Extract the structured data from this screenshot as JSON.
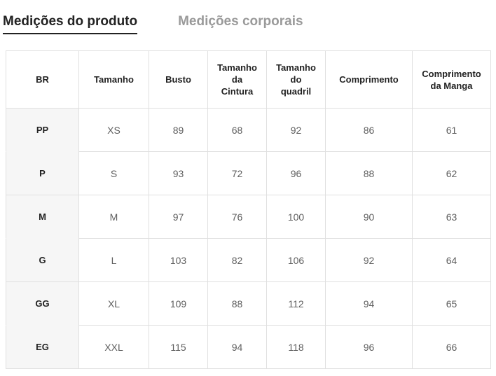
{
  "tabs": [
    {
      "label": "Medições do produto",
      "active": true
    },
    {
      "label": "Medições corporais",
      "active": false
    }
  ],
  "colors": {
    "active_tab_text": "#222222",
    "active_tab_underline": "#222222",
    "inactive_tab_text": "#9a9a9a",
    "table_border": "#e0e0e0",
    "row_label_background": "#f6f6f6",
    "header_text": "#222222",
    "cell_text": "#5e5e5e",
    "page_background": "#ffffff"
  },
  "table": {
    "headers": [
      "BR",
      "Tamanho",
      "Busto",
      "Tamanho da Cintura",
      "Tamanho do quadril",
      "Comprimento",
      "Comprimento da Manga"
    ],
    "rows": [
      {
        "cells": [
          "PP",
          "XS",
          "89",
          "68",
          "92",
          "86",
          "61"
        ]
      },
      {
        "cells": [
          "P",
          "S",
          "93",
          "72",
          "96",
          "88",
          "62"
        ]
      },
      {
        "cells": [
          "M",
          "M",
          "97",
          "76",
          "100",
          "90",
          "63"
        ]
      },
      {
        "cells": [
          "G",
          "L",
          "103",
          "82",
          "106",
          "92",
          "64"
        ]
      },
      {
        "cells": [
          "GG",
          "XL",
          "109",
          "88",
          "112",
          "94",
          "65"
        ]
      },
      {
        "cells": [
          "EG",
          "XXL",
          "115",
          "94",
          "118",
          "96",
          "66"
        ]
      }
    ]
  }
}
